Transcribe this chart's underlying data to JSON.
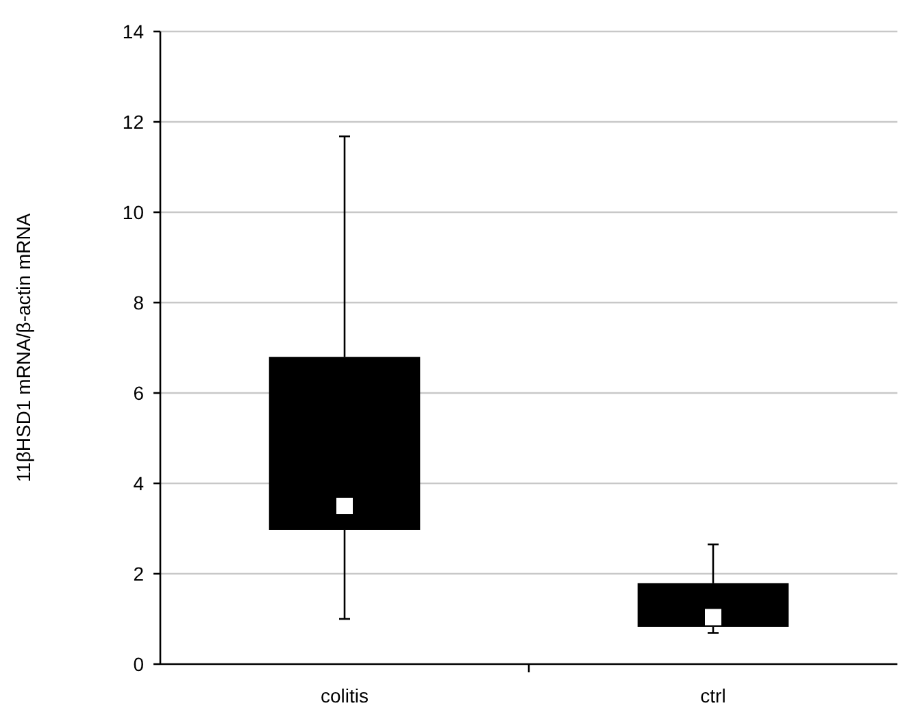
{
  "chart_data": {
    "type": "box",
    "ylabel": "11βHSD1 mRNA/β-actin mRNA",
    "categories": [
      "colitis",
      "ctrl"
    ],
    "color": "#000000",
    "boxes": [
      {
        "low": 1.0,
        "q1": 2.97,
        "median": 3.5,
        "q3": 6.8,
        "high": 11.68
      },
      {
        "low": 0.69,
        "q1": 0.82,
        "median": 1.04,
        "q3": 1.79,
        "high": 2.65
      }
    ],
    "ylim": [
      0,
      14
    ],
    "yticks": [
      0,
      2,
      4,
      6,
      8,
      10,
      12,
      14
    ],
    "grid": "y"
  }
}
